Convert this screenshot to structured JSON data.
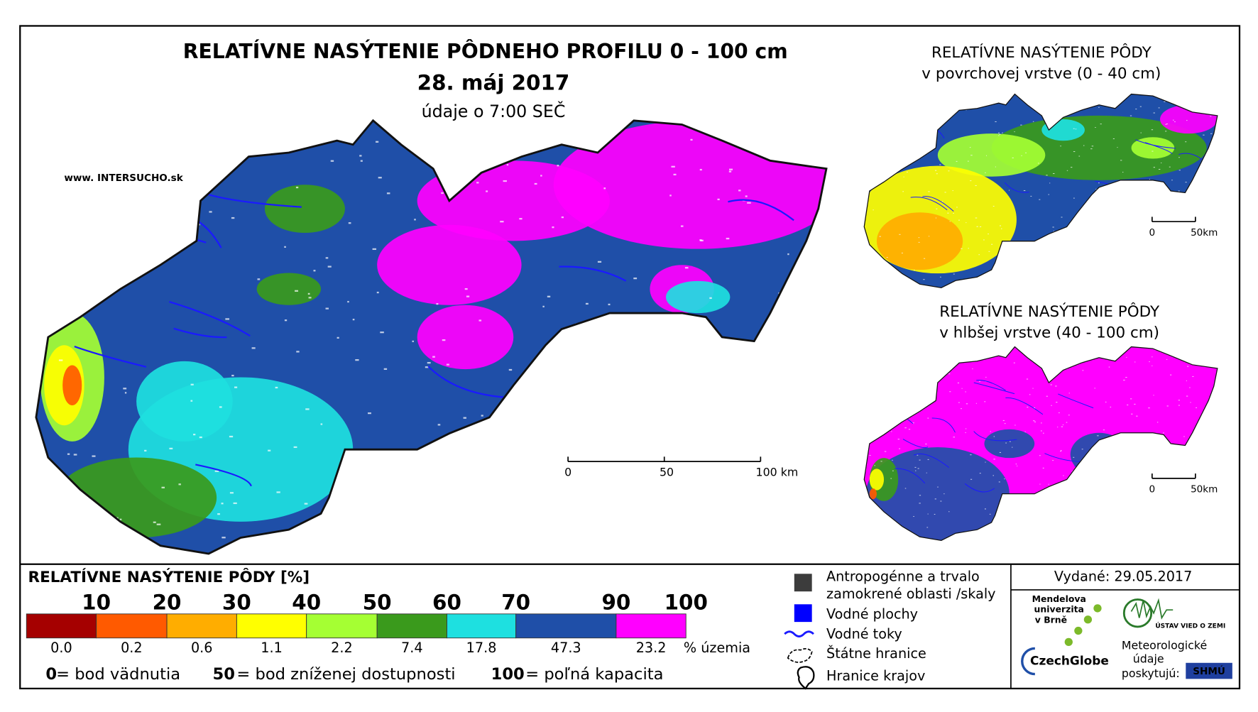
{
  "main_map": {
    "title": "RELATÍVNE NASÝTENIE PÔDNEHO PROFILU 0 - 100 cm",
    "date": "28. máj 2017",
    "time": "údaje o 7:00 SEČ",
    "website": "www. INTERSUCHO.sk",
    "scale_labels": [
      "0",
      "50",
      "100 km"
    ]
  },
  "inset_surface": {
    "title": "RELATÍVNE NASÝTENIE PÔDY",
    "subtitle": "v povrchovej vrstve (0 - 40 cm)",
    "scale_labels": [
      "0",
      "50km"
    ]
  },
  "inset_deep": {
    "title": "RELATÍVNE NASÝTENIE PÔDY",
    "subtitle": "v hlbšej vrstve (40 - 100 cm)",
    "scale_labels": [
      "0",
      "50km"
    ]
  },
  "legend": {
    "title": "RELATÍVNE NASÝTENIE PÔDY [%]",
    "thresholds": [
      10,
      20,
      30,
      40,
      50,
      60,
      70,
      90,
      100
    ],
    "shares": [
      "0.0",
      "0.2",
      "0.6",
      "1.1",
      "2.2",
      "7.4",
      "17.8",
      "47.3",
      "23.2"
    ],
    "shares_unit": "% územia",
    "notes": [
      {
        "value": "0",
        "text": "= bod vädnutia"
      },
      {
        "value": "50",
        "text": "= bod zníženej dostupnosti"
      },
      {
        "value": "100",
        "text": "= poľná kapacita"
      }
    ]
  },
  "symbols": [
    "Antropogénne a trvalo",
    "zamokrené oblasti /skaly",
    "Vodné plochy",
    "Vodné toky",
    "Štátne hranice",
    "Hranice krajov"
  ],
  "issued": "Vydané: 29.05.2017",
  "logos": {
    "mendel": [
      "Mendelova",
      "univerzita",
      "v Brně"
    ],
    "czechglobe": "CzechGlobe",
    "uvz": "ÚSTAV VIED O ZEMI",
    "provider": [
      "Meteorologické",
      "údaje",
      "poskytujú:"
    ],
    "shmu": "SHMÚ"
  }
}
